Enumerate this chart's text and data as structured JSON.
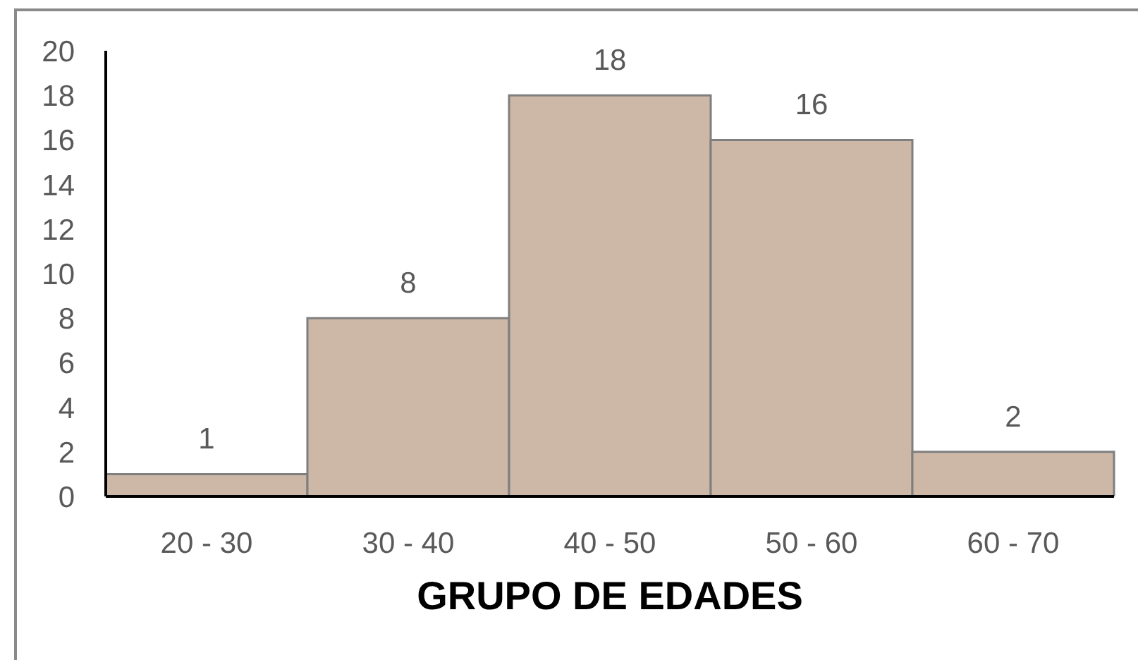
{
  "chart_data": {
    "type": "bar",
    "categories": [
      "20 - 30",
      "30 - 40",
      "40 - 50",
      "50 - 60",
      "60 - 70"
    ],
    "values": [
      1,
      8,
      18,
      16,
      2
    ],
    "color": "#cdb8a8",
    "xlabel": "GRUPO DE EDADES",
    "ylim": [
      0,
      20
    ],
    "yticks": [
      0,
      2,
      4,
      6,
      8,
      10,
      12,
      14,
      16,
      18,
      20
    ],
    "data_labels": true
  }
}
